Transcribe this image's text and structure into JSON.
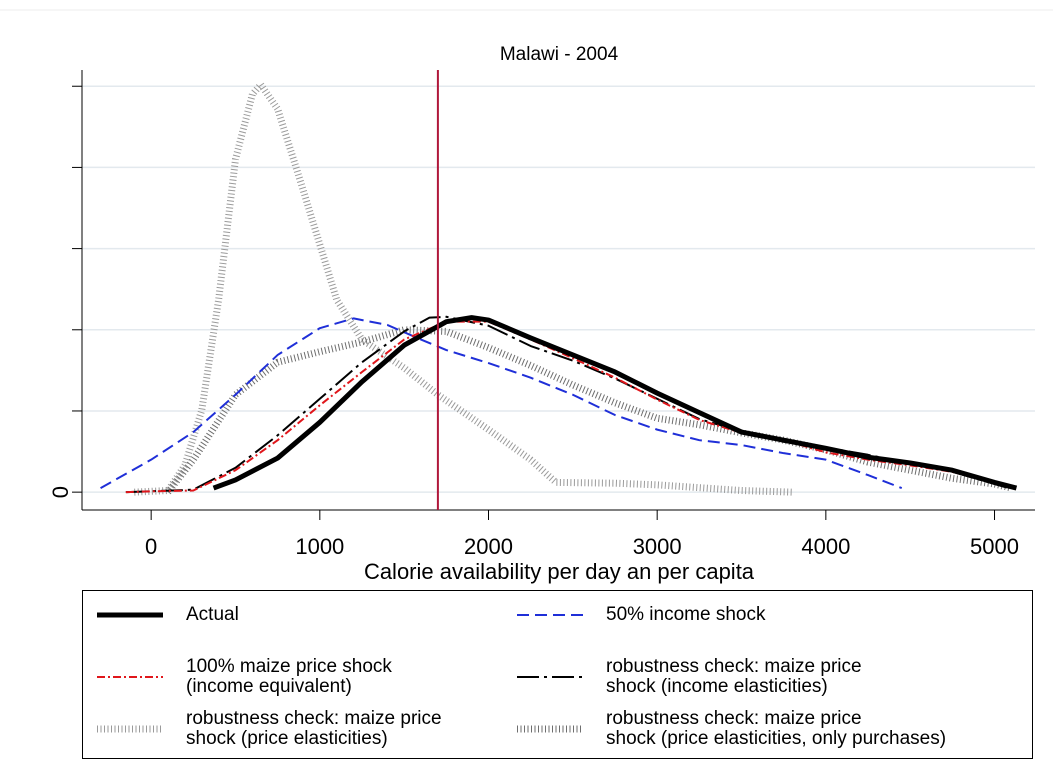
{
  "chart_data": {
    "type": "line",
    "title": "Malawi - 2004",
    "xlabel": "Calorie availability per day an per capita",
    "xlim": [
      -410,
      5240
    ],
    "xticks": [
      0,
      1000,
      2000,
      3000,
      4000,
      5000
    ],
    "ylim": [
      -0.22,
      5.2
    ],
    "yticks": [
      0
    ],
    "yticks_unlabeled": [
      1,
      2,
      3,
      4,
      5
    ],
    "grid": true,
    "vline": 1700,
    "vline_color": "#b0173a",
    "series": [
      {
        "name": "Actual",
        "color": "#000000",
        "style": "solid-thick",
        "x": [
          370,
          500,
          750,
          1000,
          1250,
          1500,
          1750,
          1900,
          2000,
          2250,
          2500,
          2750,
          3000,
          3250,
          3500,
          3750,
          4000,
          4250,
          4500,
          4750,
          5000,
          5130
        ],
        "values": [
          0.05,
          0.15,
          0.42,
          0.86,
          1.36,
          1.81,
          2.1,
          2.15,
          2.12,
          1.9,
          1.69,
          1.48,
          1.22,
          0.98,
          0.74,
          0.64,
          0.54,
          0.43,
          0.36,
          0.27,
          0.12,
          0.05
        ]
      },
      {
        "name": "50% income shock",
        "color": "#1f2fd8",
        "style": "dash",
        "x": [
          -300,
          0,
          250,
          500,
          750,
          1000,
          1200,
          1400,
          1600,
          1750,
          2000,
          2250,
          2500,
          2750,
          3000,
          3250,
          3500,
          3750,
          4000,
          4250,
          4450
        ],
        "values": [
          0.05,
          0.4,
          0.74,
          1.2,
          1.69,
          2.02,
          2.14,
          2.06,
          1.88,
          1.75,
          1.59,
          1.41,
          1.2,
          0.95,
          0.77,
          0.64,
          0.58,
          0.48,
          0.4,
          0.21,
          0.05
        ]
      },
      {
        "name": "100% maize price shock\n(income equivalent)",
        "color": "#e0161b",
        "style": "dashdot",
        "x": [
          -150,
          0,
          250,
          500,
          750,
          1000,
          1250,
          1500,
          1750,
          2000,
          2250,
          2500,
          2750,
          3000,
          3250,
          3500,
          3750,
          4000,
          4250,
          4500,
          4750,
          5000,
          5130
        ],
        "values": [
          0,
          0.01,
          0.02,
          0.27,
          0.64,
          1.07,
          1.48,
          1.88,
          2.1,
          2.1,
          1.88,
          1.65,
          1.41,
          1.14,
          0.89,
          0.73,
          0.64,
          0.49,
          0.4,
          0.33,
          0.25,
          0.12,
          0.04
        ]
      },
      {
        "name": "robustness check: maize price\nshock (income elasticities)",
        "color": "#000000",
        "style": "longdashdot",
        "x": [
          -150,
          250,
          500,
          750,
          1000,
          1250,
          1500,
          1650,
          1750,
          2000,
          2250,
          2500,
          2750,
          3000,
          3250,
          3500,
          3750,
          4000,
          4250,
          4500,
          4750,
          5000,
          5100
        ],
        "values": [
          0,
          0.03,
          0.3,
          0.7,
          1.15,
          1.6,
          1.98,
          2.15,
          2.16,
          2.05,
          1.8,
          1.62,
          1.4,
          1.15,
          0.9,
          0.75,
          0.62,
          0.55,
          0.46,
          0.35,
          0.25,
          0.1,
          0.04
        ]
      },
      {
        "name": "robustness check: maize price\nshock (price elasticities)",
        "color": "#9a9a9a",
        "style": "dot",
        "x": [
          -100,
          100,
          200,
          300,
          400,
          500,
          600,
          650,
          750,
          900,
          1000,
          1100,
          1250,
          1500,
          1700,
          2000,
          2250,
          2400,
          2750,
          3000,
          3500,
          3800
        ],
        "values": [
          0,
          0.02,
          0.33,
          1.01,
          2.37,
          4.1,
          4.9,
          5.02,
          4.72,
          3.73,
          3.05,
          2.37,
          1.88,
          1.53,
          1.2,
          0.77,
          0.4,
          0.12,
          0.11,
          0.09,
          0.02,
          0
        ]
      },
      {
        "name": "robustness check: maize price\nshock (price elasticities, only purchases)",
        "color": "#6e6e6e",
        "style": "dot",
        "x": [
          100,
          250,
          500,
          750,
          1000,
          1250,
          1500,
          1750,
          2000,
          2250,
          2500,
          2750,
          3000,
          3250,
          3500,
          3750,
          4000,
          4250,
          4500,
          4750,
          5000,
          5100
        ],
        "values": [
          0,
          0.4,
          1.2,
          1.6,
          1.73,
          1.85,
          2.0,
          1.98,
          1.78,
          1.56,
          1.32,
          1.1,
          0.91,
          0.83,
          0.73,
          0.64,
          0.52,
          0.37,
          0.27,
          0.17,
          0.1,
          0.05
        ]
      }
    ]
  }
}
